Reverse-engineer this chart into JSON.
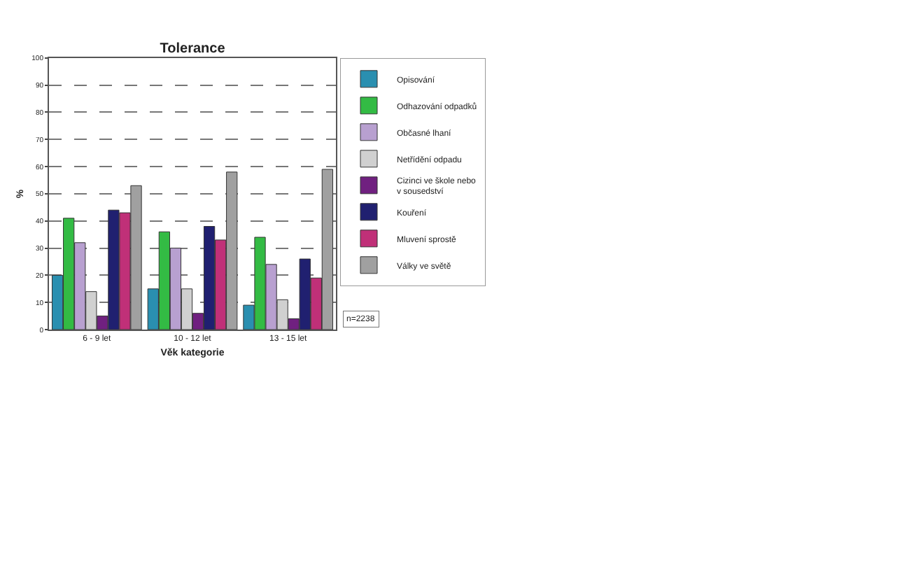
{
  "chart_data": {
    "type": "bar",
    "title": "Tolerance",
    "xlabel": "Věk kategorie",
    "ylabel": "%",
    "categories": [
      "6 - 9 let",
      "10 - 12 let",
      "13 - 15 let"
    ],
    "series": [
      {
        "name": "Opisování",
        "color": "#2a8fb0",
        "values": [
          20,
          15,
          9
        ]
      },
      {
        "name": "Odhazování odpadků",
        "color": "#33bb44",
        "values": [
          41,
          36,
          34
        ]
      },
      {
        "name": "Občasné lhaní",
        "color": "#b8a0d0",
        "values": [
          32,
          30,
          24
        ]
      },
      {
        "name": "Netřídění odpadu",
        "color": "#d0d0d0",
        "values": [
          14,
          15,
          11
        ]
      },
      {
        "name": "Cizinci ve škole nebo v sousedství",
        "color": "#702080",
        "values": [
          5,
          6,
          4
        ]
      },
      {
        "name": "Kouření",
        "color": "#202070",
        "values": [
          44,
          38,
          26
        ]
      },
      {
        "name": "Mluvení sprostě",
        "color": "#c03078",
        "values": [
          43,
          33,
          19
        ]
      },
      {
        "name": "Války ve světě",
        "color": "#a0a0a0",
        "values": [
          53,
          58,
          59
        ]
      }
    ],
    "ylim": [
      0,
      100
    ],
    "yticks": [
      0,
      10,
      20,
      30,
      40,
      50,
      60,
      70,
      80,
      90,
      100
    ],
    "grid": "y",
    "legend": "right",
    "annotations": [
      "n=2238"
    ]
  }
}
